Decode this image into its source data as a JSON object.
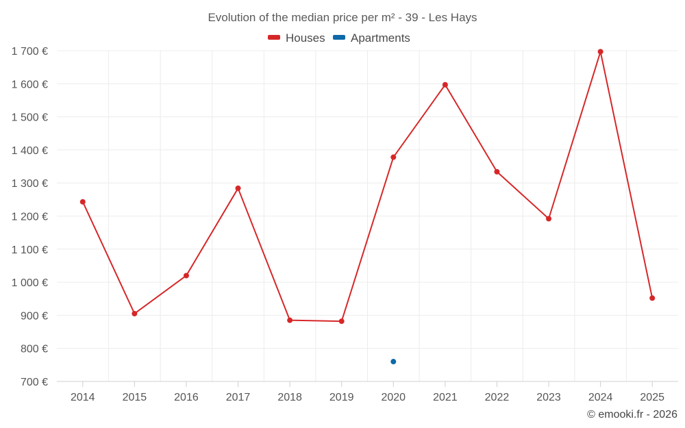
{
  "chart_data": {
    "type": "line",
    "title": "Evolution of the median price per m² - 39 - Les Hays",
    "categories": [
      "2014",
      "2015",
      "2016",
      "2017",
      "2018",
      "2019",
      "2020",
      "2021",
      "2022",
      "2023",
      "2024",
      "2025"
    ],
    "y_ticks": [
      "700 €",
      "800 €",
      "900 €",
      "1 000 €",
      "1 100 €",
      "1 200 €",
      "1 300 €",
      "1 400 €",
      "1 500 €",
      "1 600 €",
      "1 700 €"
    ],
    "ylim": [
      700,
      1700
    ],
    "grid": true,
    "legend_position": "top-center",
    "series": [
      {
        "name": "Houses",
        "color": "#d62728",
        "values": [
          1243,
          905,
          1020,
          1284,
          885,
          882,
          1378,
          1597,
          1334,
          1192,
          1697,
          952
        ]
      },
      {
        "name": "Apartments",
        "color": "#0e6aa8",
        "values": [
          null,
          null,
          null,
          null,
          null,
          null,
          760,
          null,
          null,
          null,
          null,
          null
        ]
      }
    ]
  },
  "credit": "© emooki.fr - 2026"
}
